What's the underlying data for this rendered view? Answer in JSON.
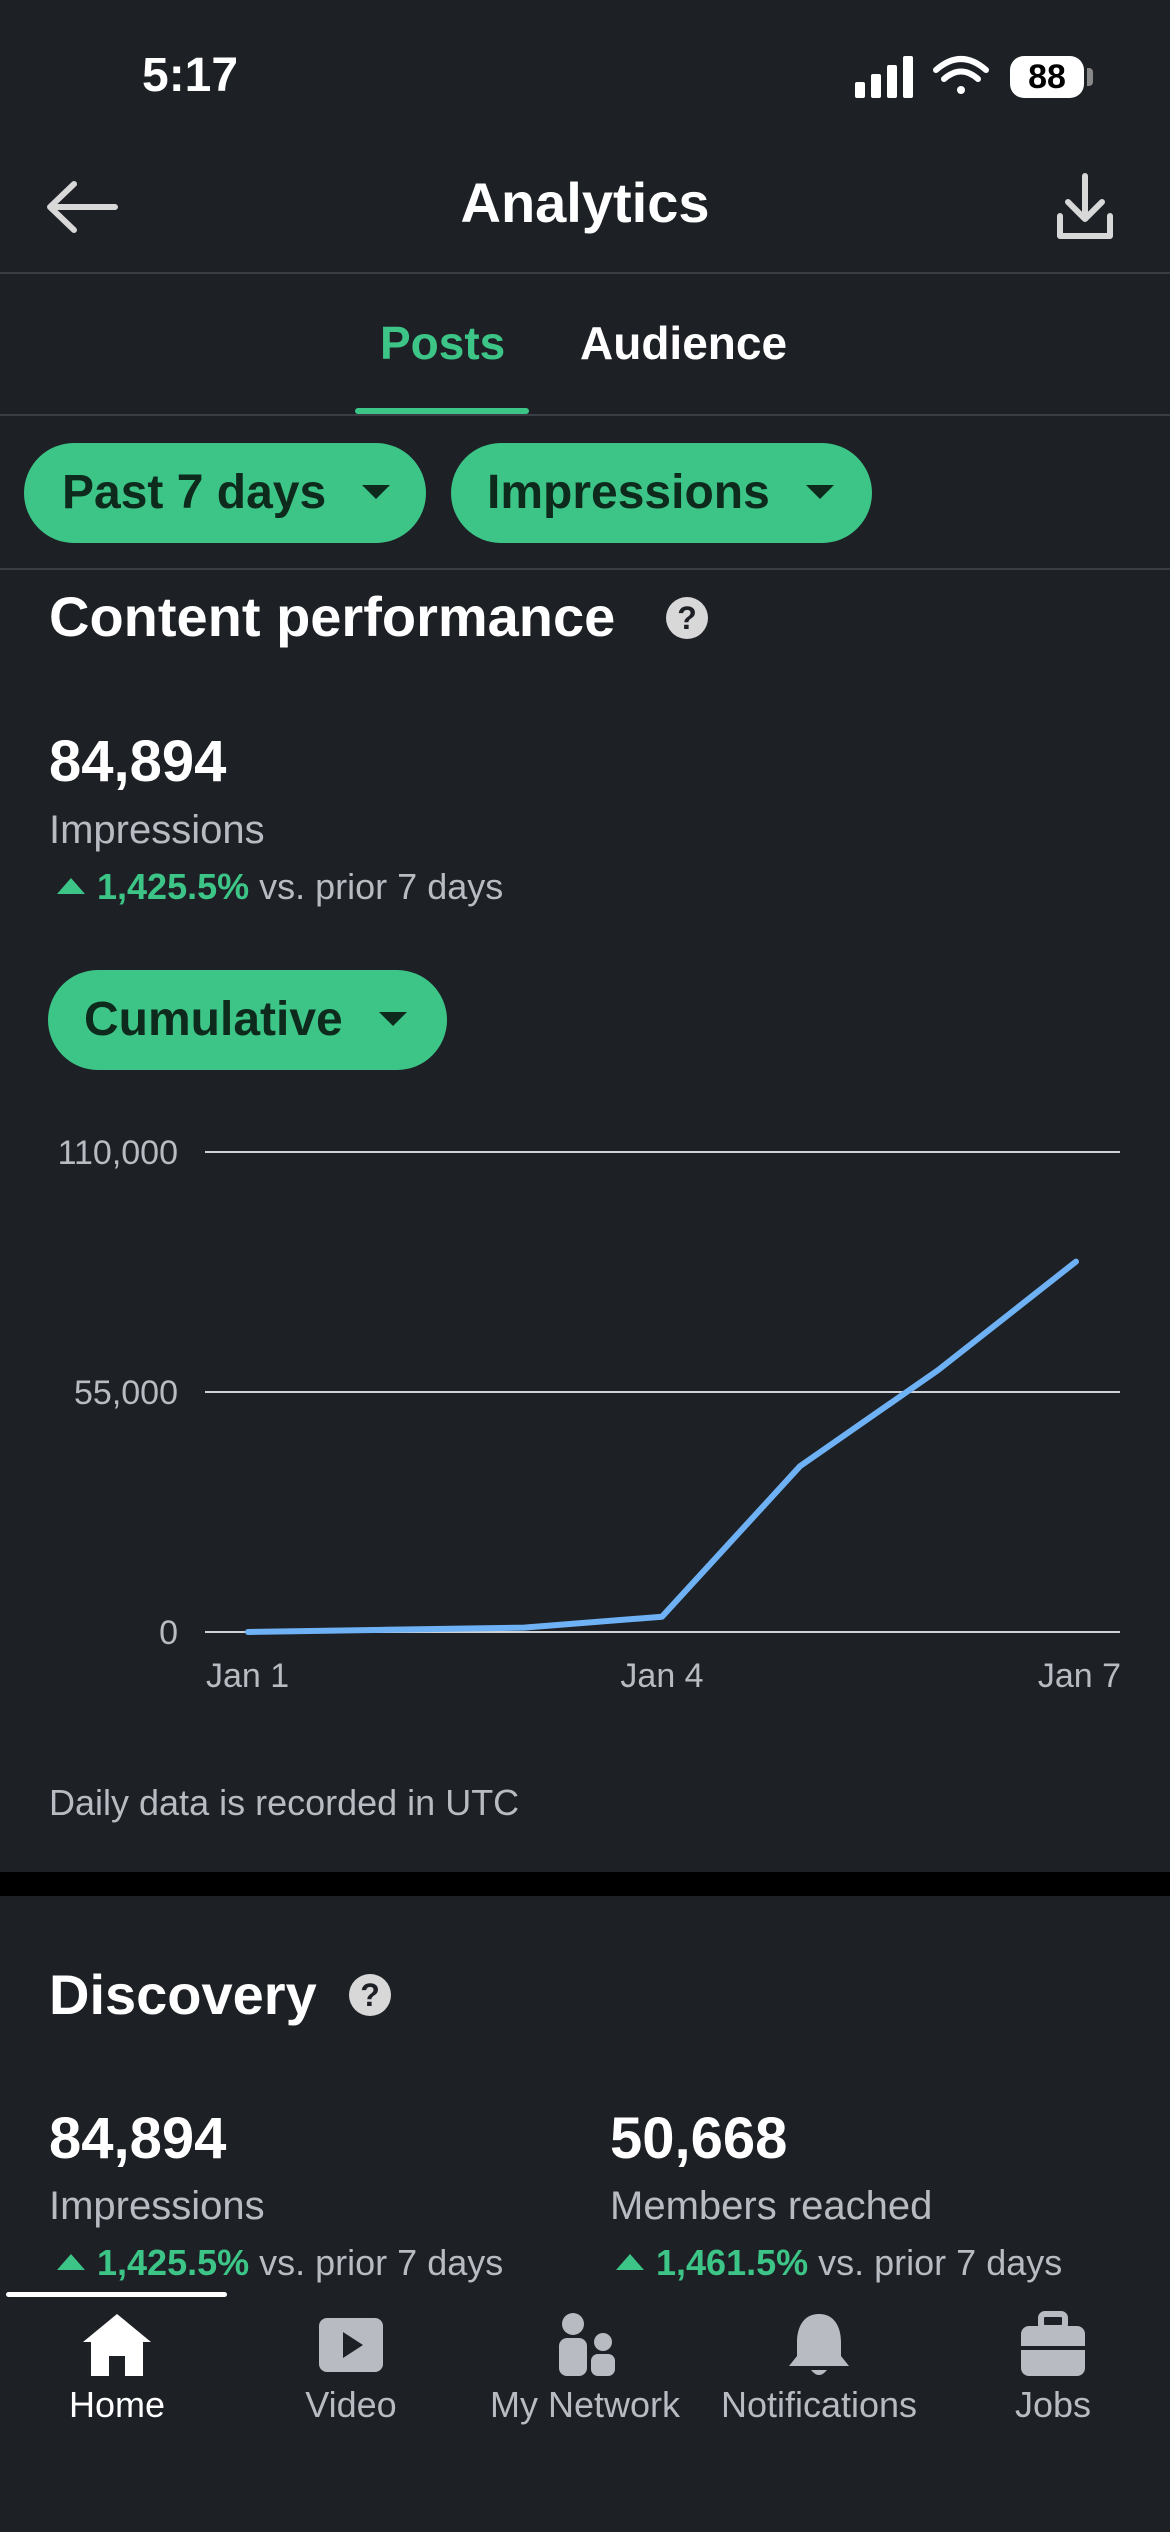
{
  "status_bar": {
    "time": "5:17",
    "battery": "88"
  },
  "header": {
    "title": "Analytics"
  },
  "tabs": [
    {
      "label": "Posts",
      "active": true
    },
    {
      "label": "Audience",
      "active": false
    }
  ],
  "filters": {
    "range_label": "Past 7 days",
    "metric_label": "Impressions"
  },
  "content_performance": {
    "title": "Content performance",
    "value": "84,894",
    "label": "Impressions",
    "change_pct": "1,425.5%",
    "change_suffix": "vs. prior 7 days",
    "mode_label": "Cumulative",
    "footnote": "Daily data is recorded in UTC"
  },
  "chart_data": {
    "type": "line",
    "x": [
      "Jan 1",
      "Jan 2",
      "Jan 3",
      "Jan 4",
      "Jan 5",
      "Jan 6",
      "Jan 7"
    ],
    "values": [
      0,
      500,
      1000,
      3500,
      38000,
      60000,
      84894
    ],
    "x_tick_labels": [
      "Jan 1",
      "Jan 4",
      "Jan 7"
    ],
    "y_tick_labels": [
      "110,000",
      "55,000",
      "0"
    ],
    "y_ticks": [
      110000,
      55000,
      0
    ],
    "ylim": [
      0,
      110000
    ],
    "grid": true,
    "line_color": "#6fb1f5"
  },
  "discovery": {
    "title": "Discovery",
    "impressions": {
      "value": "84,894",
      "label": "Impressions",
      "change_pct": "1,425.5%",
      "change_suffix": "vs. prior 7 days"
    },
    "members": {
      "value": "50,668",
      "label": "Members reached",
      "change_pct": "1,461.5%",
      "change_suffix": "vs. prior 7 days"
    }
  },
  "bottom_nav": [
    {
      "label": "Home",
      "icon": "home-icon",
      "active": true
    },
    {
      "label": "Video",
      "icon": "video-icon",
      "active": false
    },
    {
      "label": "My Network",
      "icon": "network-icon",
      "active": false
    },
    {
      "label": "Notifications",
      "icon": "bell-icon",
      "active": false
    },
    {
      "label": "Jobs",
      "icon": "briefcase-icon",
      "active": false
    }
  ],
  "colors": {
    "accent": "#3cc587",
    "background": "#1d2025",
    "line": "#6fb1f5"
  }
}
